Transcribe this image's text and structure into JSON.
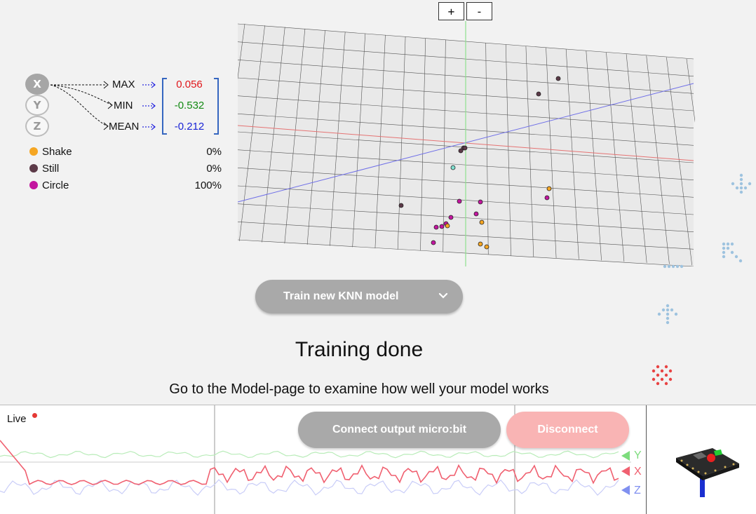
{
  "zoom": {
    "in_label": "+",
    "out_label": "-"
  },
  "axes": [
    {
      "label": "X",
      "active": true
    },
    {
      "label": "Y",
      "active": false
    },
    {
      "label": "Z",
      "active": false
    }
  ],
  "features": [
    {
      "label": "MAX",
      "value": "0.056",
      "color": "#e0161a"
    },
    {
      "label": "MIN",
      "value": "-0.532",
      "color": "#138a13"
    },
    {
      "label": "MEAN",
      "value": "-0.212",
      "color": "#1a24d6"
    }
  ],
  "gestures": [
    {
      "name": "Shake",
      "confidence": "0%",
      "color": "#f5a623"
    },
    {
      "name": "Still",
      "confidence": "0%",
      "color": "#5c3a48"
    },
    {
      "name": "Circle",
      "confidence": "100%",
      "color": "#c3159f"
    }
  ],
  "train": {
    "label": "Train new KNN model"
  },
  "status": {
    "title": "Training done",
    "subtitle": "Go to the Model-page to examine how well your model works"
  },
  "live": {
    "label": "Live",
    "axis_labels": [
      "Y",
      "X",
      "Z"
    ],
    "axis_colors": [
      "#7ddc7d",
      "#f06070",
      "#8090f0"
    ]
  },
  "buttons": {
    "connect_label": "Connect output micro:bit",
    "disconnect_label": "Disconnect"
  }
}
